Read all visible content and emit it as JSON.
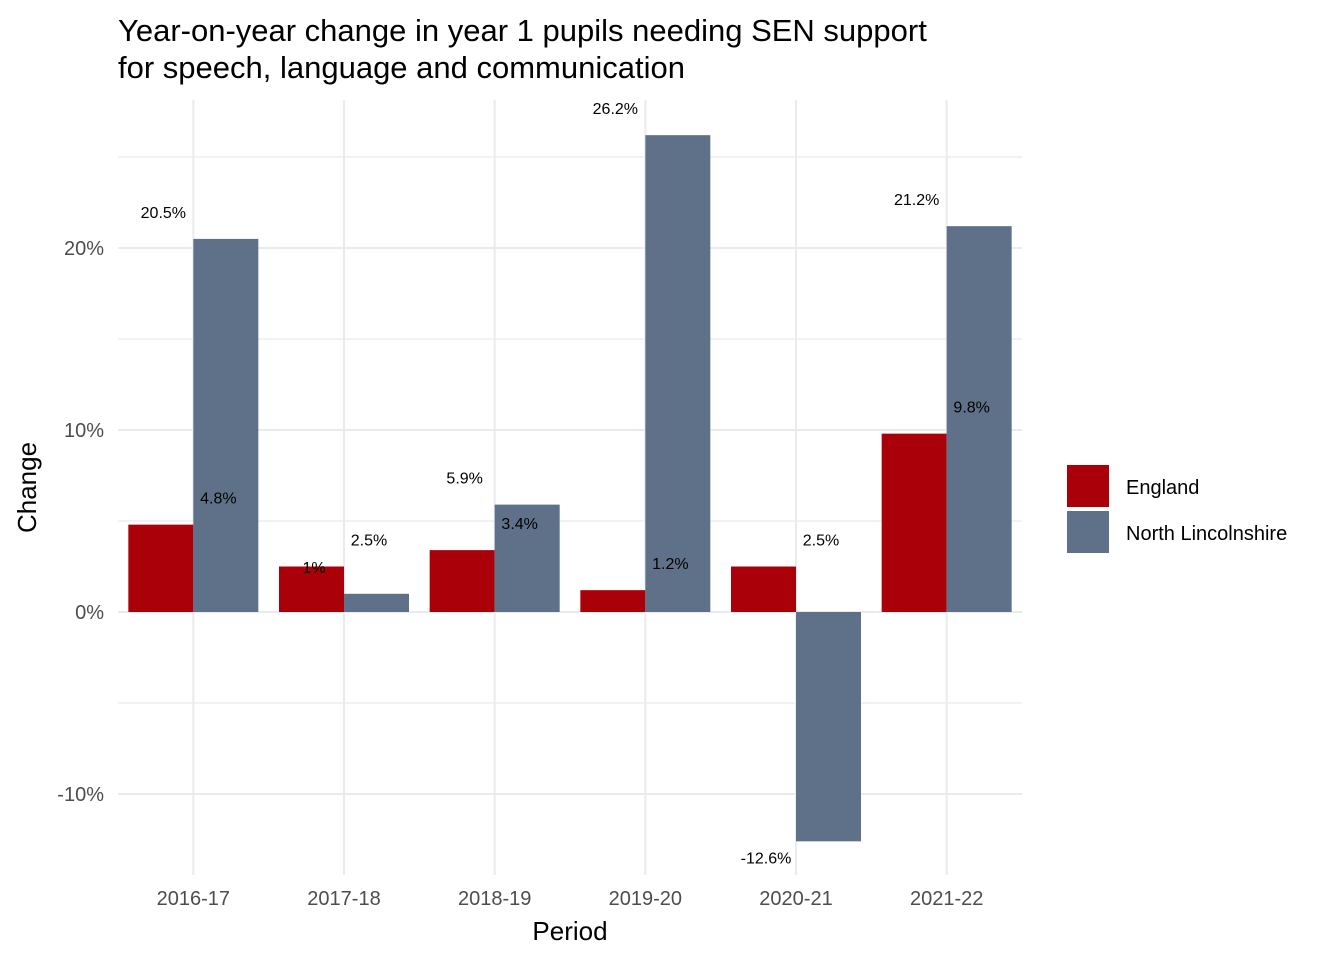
{
  "chart_data": {
    "type": "bar",
    "title": "Year-on-year change in year 1 pupils needing SEN support\nfor speech, language and communication",
    "xlabel": "Period",
    "ylabel": "Change",
    "categories": [
      "2016-17",
      "2017-18",
      "2018-19",
      "2019-20",
      "2020-21",
      "2021-22"
    ],
    "series": [
      {
        "name": "England",
        "color": "#aa0009",
        "values": [
          4.8,
          2.5,
          3.4,
          1.2,
          2.5,
          9.8
        ],
        "labels": [
          "4.8%",
          "2.5%",
          "3.4%",
          "1.2%",
          "2.5%",
          "9.8%"
        ]
      },
      {
        "name": "North Lincolnshire",
        "color": "#5f7189",
        "values": [
          20.5,
          1.0,
          5.9,
          26.2,
          -12.6,
          21.2
        ],
        "labels": [
          "20.5%",
          "1%",
          "5.9%",
          "26.2%",
          "-12.6%",
          "21.2%"
        ]
      }
    ],
    "ylim": [
      -14,
      28
    ],
    "yticks": [
      -10,
      0,
      10,
      20
    ],
    "ytick_labels": [
      "-10%",
      "0%",
      "10%",
      "20%"
    ],
    "grid": true,
    "legend_position": "right"
  }
}
